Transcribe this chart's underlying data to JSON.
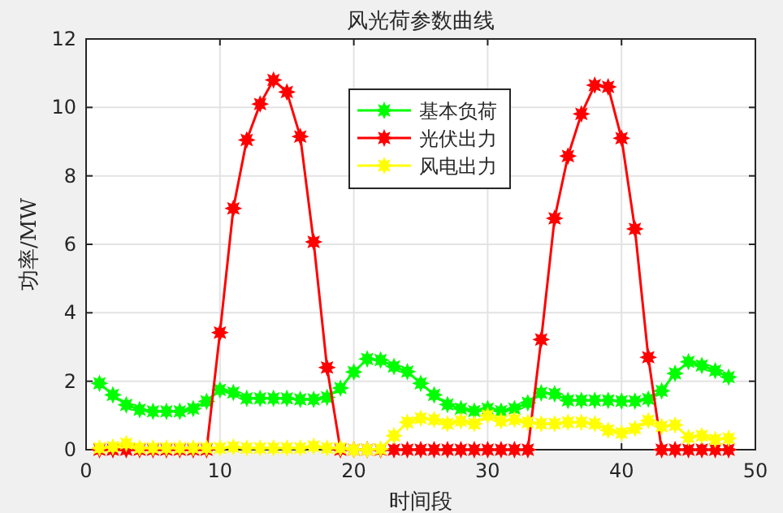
{
  "chart_data": {
    "type": "line",
    "title": "风光荷参数曲线",
    "xlabel": "时间段",
    "ylabel": "功率/MW",
    "x": [
      1,
      2,
      3,
      4,
      5,
      6,
      7,
      8,
      9,
      10,
      11,
      12,
      13,
      14,
      15,
      16,
      17,
      18,
      19,
      20,
      21,
      22,
      23,
      24,
      25,
      26,
      27,
      28,
      29,
      30,
      31,
      32,
      33,
      34,
      35,
      36,
      37,
      38,
      39,
      40,
      41,
      42,
      43,
      44,
      45,
      46,
      47,
      48
    ],
    "series": [
      {
        "name": "基本负荷",
        "color": "#00ff00",
        "values": [
          1.94,
          1.6,
          1.31,
          1.17,
          1.12,
          1.12,
          1.12,
          1.2,
          1.41,
          1.75,
          1.67,
          1.5,
          1.5,
          1.5,
          1.5,
          1.47,
          1.47,
          1.53,
          1.8,
          2.27,
          2.65,
          2.62,
          2.43,
          2.28,
          1.94,
          1.6,
          1.32,
          1.2,
          1.13,
          1.2,
          1.13,
          1.2,
          1.37,
          1.66,
          1.63,
          1.44,
          1.44,
          1.44,
          1.44,
          1.42,
          1.42,
          1.48,
          1.72,
          2.23,
          2.57,
          2.46,
          2.31,
          2.12
        ]
      },
      {
        "name": "光伏出力",
        "color": "#ff0000",
        "values": [
          0,
          0,
          0,
          0,
          0,
          0,
          0,
          0,
          0,
          3.42,
          7.05,
          9.05,
          10.1,
          10.8,
          10.45,
          9.15,
          6.07,
          2.4,
          0,
          0,
          0,
          0,
          0,
          0,
          0,
          0,
          0,
          0,
          0,
          0,
          0,
          0,
          0,
          3.22,
          6.76,
          8.58,
          9.81,
          10.65,
          10.6,
          9.1,
          6.45,
          2.7,
          0,
          0,
          0,
          0,
          0,
          0
        ]
      },
      {
        "name": "风电出力",
        "color": "#ffff00",
        "values": [
          0.05,
          0.08,
          0.18,
          0.05,
          0.05,
          0.05,
          0.05,
          0.05,
          0.05,
          0.05,
          0.08,
          0.05,
          0.05,
          0.05,
          0.05,
          0.05,
          0.1,
          0.05,
          0.05,
          0,
          0,
          0.02,
          0.41,
          0.8,
          0.92,
          0.88,
          0.76,
          0.84,
          0.76,
          1.0,
          0.84,
          0.88,
          0.8,
          0.76,
          0.76,
          0.8,
          0.8,
          0.76,
          0.57,
          0.49,
          0.62,
          0.85,
          0.68,
          0.72,
          0.36,
          0.41,
          0.3,
          0.33
        ]
      }
    ],
    "xlim": [
      0,
      50
    ],
    "xticks": [
      0,
      10,
      20,
      30,
      40,
      50
    ],
    "ylim": [
      0,
      12
    ],
    "yticks": [
      0,
      2,
      4,
      6,
      8,
      10,
      12
    ],
    "grid": true,
    "legend": "top",
    "marker": "star",
    "line_style": "solid"
  }
}
